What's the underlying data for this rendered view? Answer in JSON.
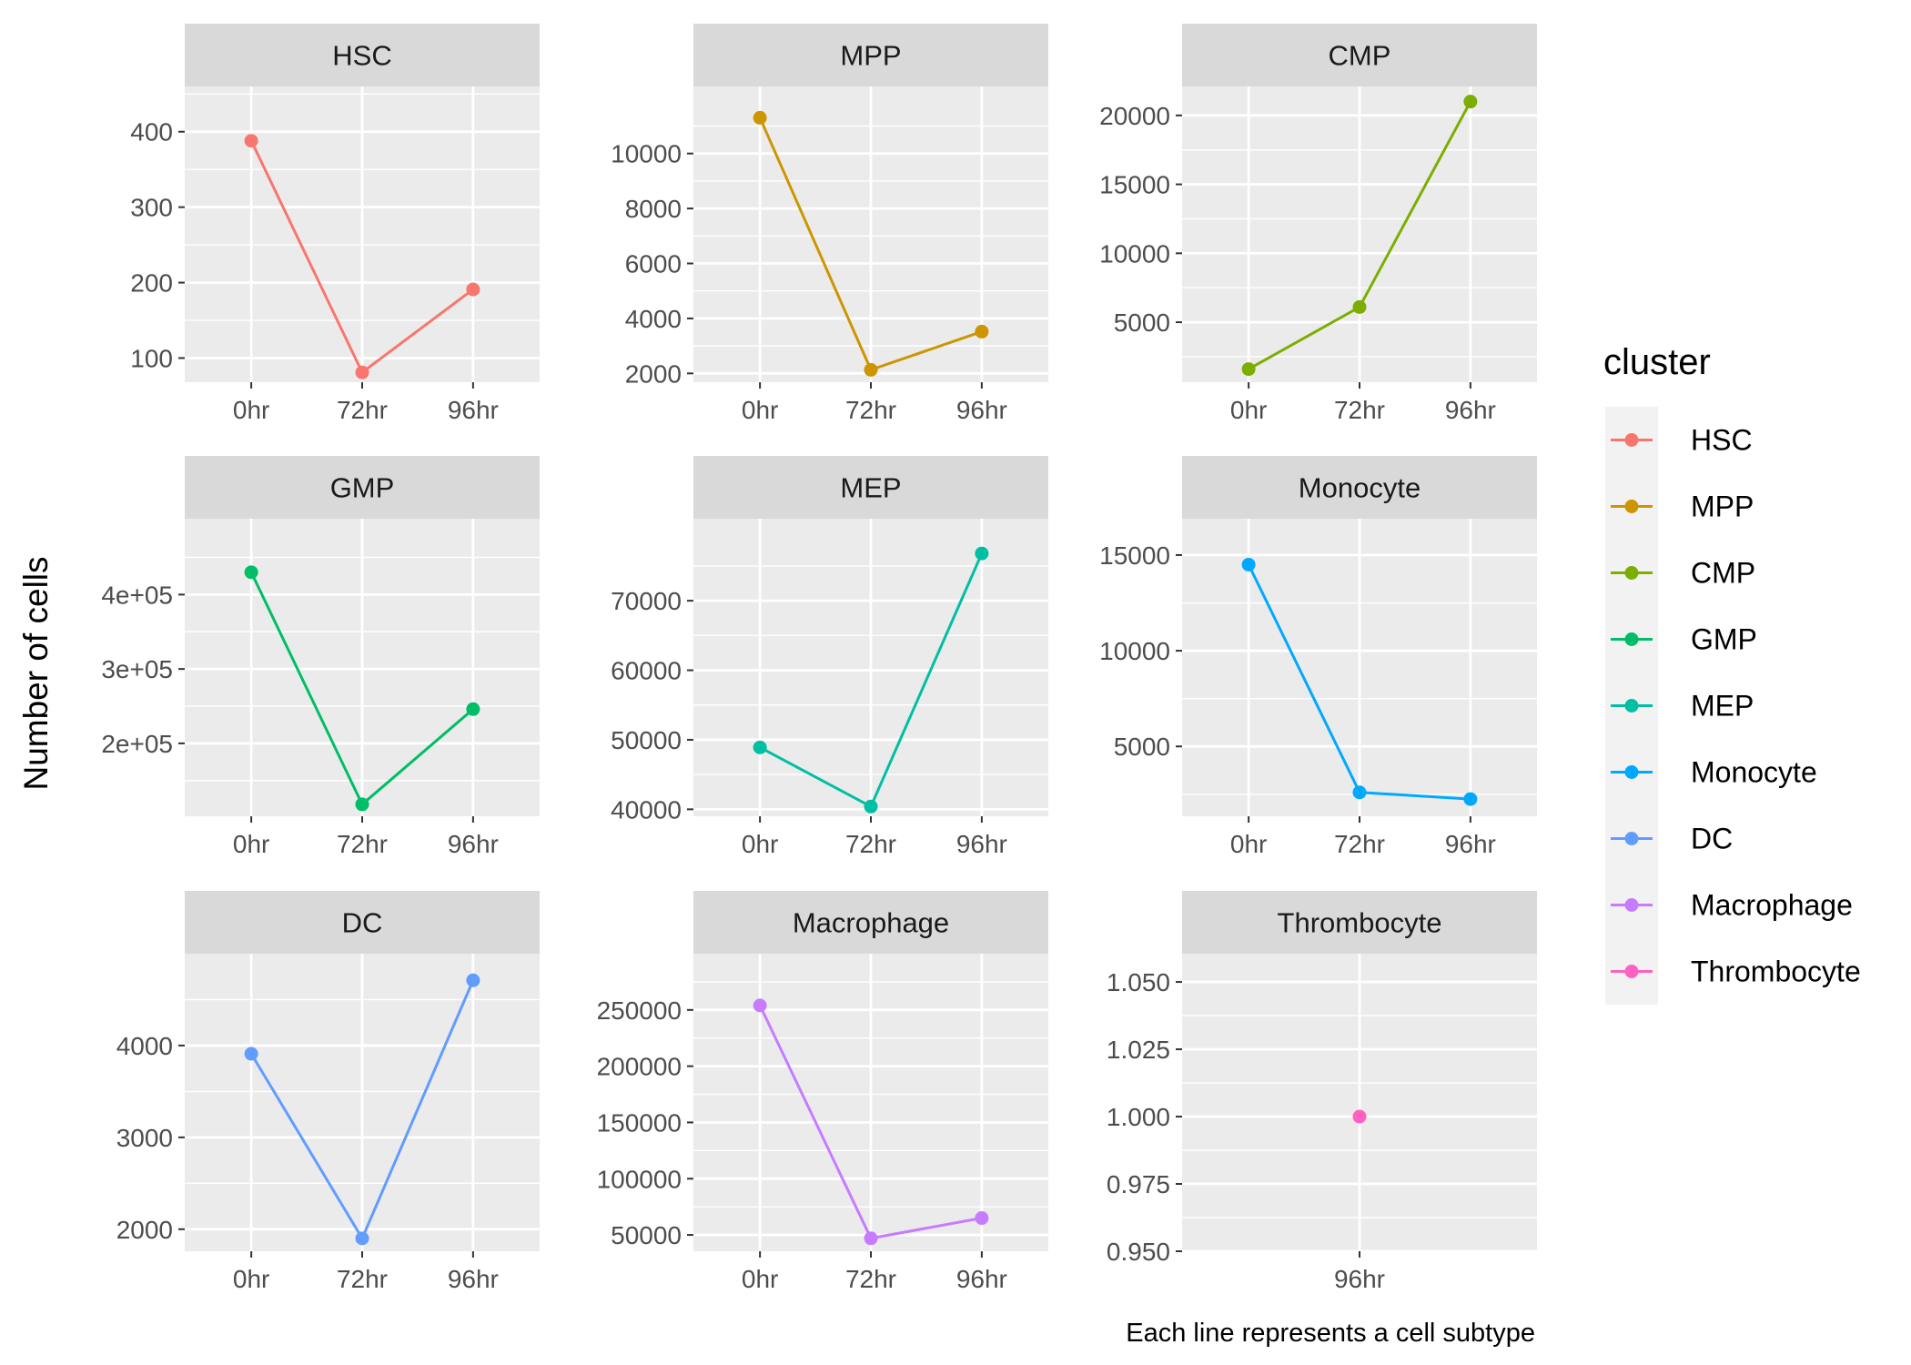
{
  "chart_data": {
    "type": "line",
    "ylabel": "Number of cells",
    "caption": "Each line represents a cell subtype",
    "legend": {
      "title": "cluster",
      "position": "right",
      "entries": [
        {
          "name": "HSC",
          "color": "#F8766D"
        },
        {
          "name": "MPP",
          "color": "#CD9600"
        },
        {
          "name": "CMP",
          "color": "#7CAE00"
        },
        {
          "name": "GMP",
          "color": "#00BE67"
        },
        {
          "name": "MEP",
          "color": "#00BFA4"
        },
        {
          "name": "Monocyte",
          "color": "#00A9FF"
        },
        {
          "name": "DC",
          "color": "#619CFF"
        },
        {
          "name": "Macrophage",
          "color": "#C77CFF"
        },
        {
          "name": "Thrombocyte",
          "color": "#FF61C3"
        }
      ]
    },
    "grid": true,
    "facets": [
      {
        "name": "HSC",
        "color": "#F8766D",
        "x": [
          "0hr",
          "72hr",
          "96hr"
        ],
        "values": [
          388,
          81,
          191
        ],
        "ylim": [
          68,
          460
        ],
        "yticks": [
          100,
          200,
          300,
          400
        ],
        "ytick_labels": [
          "100",
          "200",
          "300",
          "400"
        ]
      },
      {
        "name": "MPP",
        "color": "#CD9600",
        "x": [
          "0hr",
          "72hr",
          "96hr"
        ],
        "values": [
          11300,
          2130,
          3520
        ],
        "ylim": [
          1680,
          12440
        ],
        "yticks": [
          2000,
          4000,
          6000,
          8000,
          10000
        ],
        "ytick_labels": [
          "2000",
          "4000",
          "6000",
          "8000",
          "10000"
        ]
      },
      {
        "name": "CMP",
        "color": "#7CAE00",
        "x": [
          "0hr",
          "72hr",
          "96hr"
        ],
        "values": [
          1600,
          6100,
          21000
        ],
        "ylim": [
          650,
          22100
        ],
        "yticks": [
          5000,
          10000,
          15000,
          20000
        ],
        "ytick_labels": [
          "5000",
          "10000",
          "15000",
          "20000"
        ]
      },
      {
        "name": "GMP",
        "color": "#00BE67",
        "x": [
          "0hr",
          "72hr",
          "96hr"
        ],
        "values": [
          430000,
          118000,
          246000
        ],
        "ylim": [
          102000,
          502000
        ],
        "yticks": [
          200000,
          300000,
          400000
        ],
        "ytick_labels": [
          "2e+05",
          "3e+05",
          "4e+05"
        ]
      },
      {
        "name": "MEP",
        "color": "#00BFA4",
        "x": [
          "0hr",
          "72hr",
          "96hr"
        ],
        "values": [
          48900,
          40400,
          76800
        ],
        "ylim": [
          39000,
          81800
        ],
        "yticks": [
          40000,
          50000,
          60000,
          70000
        ],
        "ytick_labels": [
          "40000",
          "50000",
          "60000",
          "70000"
        ]
      },
      {
        "name": "Monocyte",
        "color": "#00A9FF",
        "x": [
          "0hr",
          "72hr",
          "96hr"
        ],
        "values": [
          14500,
          2600,
          2250
        ],
        "ylim": [
          1350,
          16900
        ],
        "yticks": [
          5000,
          10000,
          15000
        ],
        "ytick_labels": [
          "5000",
          "10000",
          "15000"
        ]
      },
      {
        "name": "DC",
        "color": "#619CFF",
        "x": [
          "0hr",
          "72hr",
          "96hr"
        ],
        "values": [
          3910,
          1900,
          4710
        ],
        "ylim": [
          1760,
          5000
        ],
        "yticks": [
          2000,
          3000,
          4000
        ],
        "ytick_labels": [
          "2000",
          "3000",
          "4000"
        ]
      },
      {
        "name": "Macrophage",
        "color": "#C77CFF",
        "x": [
          "0hr",
          "72hr",
          "96hr"
        ],
        "values": [
          254000,
          47000,
          65000
        ],
        "ylim": [
          35500,
          300000
        ],
        "yticks": [
          50000,
          100000,
          150000,
          200000,
          250000
        ],
        "ytick_labels": [
          "50000",
          "100000",
          "150000",
          "200000",
          "250000"
        ]
      },
      {
        "name": "Thrombocyte",
        "color": "#FF61C3",
        "x": [
          "96hr"
        ],
        "values": [
          1.0
        ],
        "ylim": [
          0.95,
          1.0605
        ],
        "yticks": [
          0.95,
          0.975,
          1.0,
          1.025,
          1.05
        ],
        "ytick_labels": [
          "0.950",
          "0.975",
          "1.000",
          "1.025",
          "1.050"
        ]
      }
    ]
  }
}
